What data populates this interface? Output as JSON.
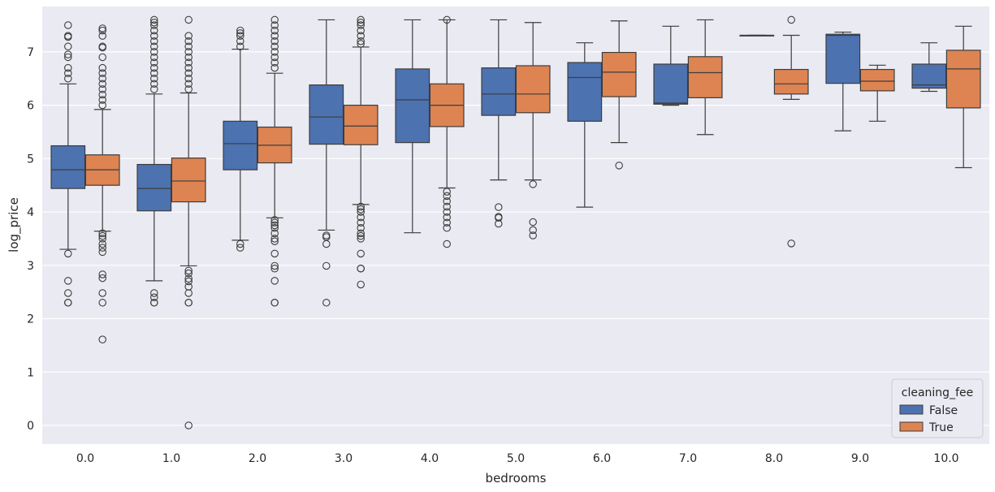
{
  "chart_data": {
    "type": "box",
    "title": "",
    "xlabel": "bedrooms",
    "ylabel": "log_price",
    "ylim": [
      -0.35,
      7.85
    ],
    "yticks": [
      0,
      1,
      2,
      3,
      4,
      5,
      6,
      7
    ],
    "ytick_labels": [
      "0",
      "1",
      "2",
      "3",
      "4",
      "5",
      "6",
      "7"
    ],
    "grid": true,
    "categories": [
      "0.0",
      "1.0",
      "2.0",
      "3.0",
      "4.0",
      "5.0",
      "6.0",
      "7.0",
      "8.0",
      "9.0",
      "10.0"
    ],
    "legend": {
      "title": "cleaning_fee",
      "position": "lower-right",
      "entries": [
        {
          "name": "False",
          "color": "#4c72b0"
        },
        {
          "name": "True",
          "color": "#dd8452"
        }
      ]
    },
    "series": [
      {
        "name": "False",
        "color": "#4c72b0",
        "boxes": [
          {
            "q1": 4.44,
            "median": 4.79,
            "q3": 5.24,
            "whislo": 3.3,
            "whishi": 6.4,
            "fliers": [
              7.5,
              7.3,
              7.28,
              7.1,
              6.95,
              6.9,
              6.7,
              6.6,
              6.5,
              3.22,
              2.71,
              2.48,
              2.3,
              2.3
            ]
          },
          {
            "q1": 4.02,
            "median": 4.44,
            "q3": 4.89,
            "whislo": 2.71,
            "whishi": 6.21,
            "fliers": [
              7.6,
              7.55,
              7.5,
              7.4,
              7.3,
              7.2,
              7.1,
              7.0,
              6.9,
              6.8,
              6.7,
              6.6,
              6.5,
              6.4,
              6.3,
              2.48,
              2.4,
              2.3,
              2.3
            ]
          },
          {
            "q1": 4.79,
            "median": 5.28,
            "q3": 5.7,
            "whislo": 3.47,
            "whishi": 7.05,
            "fliers": [
              7.4,
              7.35,
              7.3,
              7.2,
              7.1,
              3.4,
              3.33
            ]
          },
          {
            "q1": 5.27,
            "median": 5.78,
            "q3": 6.38,
            "whislo": 3.66,
            "whishi": 7.6,
            "fliers": [
              3.56,
              3.53,
              3.4,
              2.99,
              2.3
            ]
          },
          {
            "q1": 5.3,
            "median": 6.1,
            "q3": 6.68,
            "whislo": 3.61,
            "whishi": 7.6,
            "fliers": []
          },
          {
            "q1": 5.81,
            "median": 6.21,
            "q3": 6.7,
            "whislo": 4.6,
            "whishi": 7.6,
            "fliers": [
              4.09,
              3.91,
              3.89,
              3.78
            ]
          },
          {
            "q1": 5.7,
            "median": 6.52,
            "q3": 6.8,
            "whislo": 4.09,
            "whishi": 7.17,
            "fliers": []
          },
          {
            "q1": 6.02,
            "median": 6.04,
            "q3": 6.77,
            "whislo": 6.0,
            "whishi": 7.48,
            "fliers": []
          },
          {
            "q1": 7.31,
            "median": 7.31,
            "q3": 7.31,
            "whislo": 7.31,
            "whishi": 7.31,
            "fliers": []
          },
          {
            "q1": 6.41,
            "median": 7.31,
            "q3": 7.33,
            "whislo": 5.52,
            "whishi": 7.37,
            "fliers": []
          },
          {
            "q1": 6.32,
            "median": 6.38,
            "q3": 6.77,
            "whislo": 6.26,
            "whishi": 7.17,
            "fliers": []
          }
        ]
      },
      {
        "name": "True",
        "color": "#dd8452",
        "boxes": [
          {
            "q1": 4.5,
            "median": 4.79,
            "q3": 5.07,
            "whislo": 3.64,
            "whishi": 5.92,
            "fliers": [
              7.44,
              7.4,
              7.3,
              7.1,
              7.08,
              6.9,
              6.7,
              6.6,
              6.5,
              6.4,
              6.3,
              6.2,
              6.1,
              6.0,
              3.6,
              3.55,
              3.5,
              3.4,
              3.33,
              3.25,
              2.83,
              2.76,
              2.48,
              2.3,
              1.61
            ]
          },
          {
            "q1": 4.19,
            "median": 4.58,
            "q3": 5.01,
            "whislo": 2.99,
            "whishi": 6.23,
            "fliers": [
              7.6,
              7.3,
              7.2,
              7.1,
              7.0,
              6.9,
              6.8,
              6.7,
              6.6,
              6.5,
              6.4,
              6.3,
              2.9,
              2.85,
              2.75,
              2.7,
              2.6,
              2.48,
              2.3,
              2.3,
              0.0
            ]
          },
          {
            "q1": 4.92,
            "median": 5.25,
            "q3": 5.59,
            "whislo": 3.89,
            "whishi": 6.6,
            "fliers": [
              7.6,
              7.5,
              7.4,
              7.3,
              7.2,
              7.1,
              7.0,
              6.9,
              6.8,
              6.7,
              3.85,
              3.8,
              3.75,
              3.7,
              3.6,
              3.5,
              3.45,
              3.22,
              2.99,
              2.94,
              2.71,
              2.3,
              2.3
            ]
          },
          {
            "q1": 5.26,
            "median": 5.61,
            "q3": 6.0,
            "whislo": 4.14,
            "whishi": 7.09,
            "fliers": [
              7.6,
              7.55,
              7.5,
              7.4,
              7.3,
              7.2,
              7.15,
              4.1,
              4.05,
              4.0,
              3.9,
              3.8,
              3.7,
              3.6,
              3.55,
              3.5,
              3.22,
              2.94,
              2.94,
              2.64
            ]
          },
          {
            "q1": 5.6,
            "median": 6.0,
            "q3": 6.4,
            "whislo": 4.45,
            "whishi": 7.6,
            "fliers": [
              7.6,
              4.38,
              4.3,
              4.2,
              4.1,
              4.0,
              3.9,
              3.8,
              3.7,
              3.4
            ]
          },
          {
            "q1": 5.86,
            "median": 6.21,
            "q3": 6.74,
            "whislo": 4.6,
            "whishi": 7.55,
            "fliers": [
              4.52,
              3.81,
              3.66,
              3.56
            ]
          },
          {
            "q1": 6.16,
            "median": 6.62,
            "q3": 6.99,
            "whislo": 5.3,
            "whishi": 7.58,
            "fliers": [
              4.87
            ]
          },
          {
            "q1": 6.14,
            "median": 6.61,
            "q3": 6.91,
            "whislo": 5.45,
            "whishi": 7.6,
            "fliers": []
          },
          {
            "q1": 6.21,
            "median": 6.4,
            "q3": 6.67,
            "whislo": 6.11,
            "whishi": 7.31,
            "fliers": [
              7.6,
              3.41
            ]
          },
          {
            "q1": 6.27,
            "median": 6.45,
            "q3": 6.67,
            "whislo": 5.7,
            "whishi": 6.75,
            "fliers": []
          },
          {
            "q1": 5.95,
            "median": 6.68,
            "q3": 7.03,
            "whislo": 4.83,
            "whishi": 7.48,
            "fliers": []
          }
        ]
      }
    ]
  }
}
